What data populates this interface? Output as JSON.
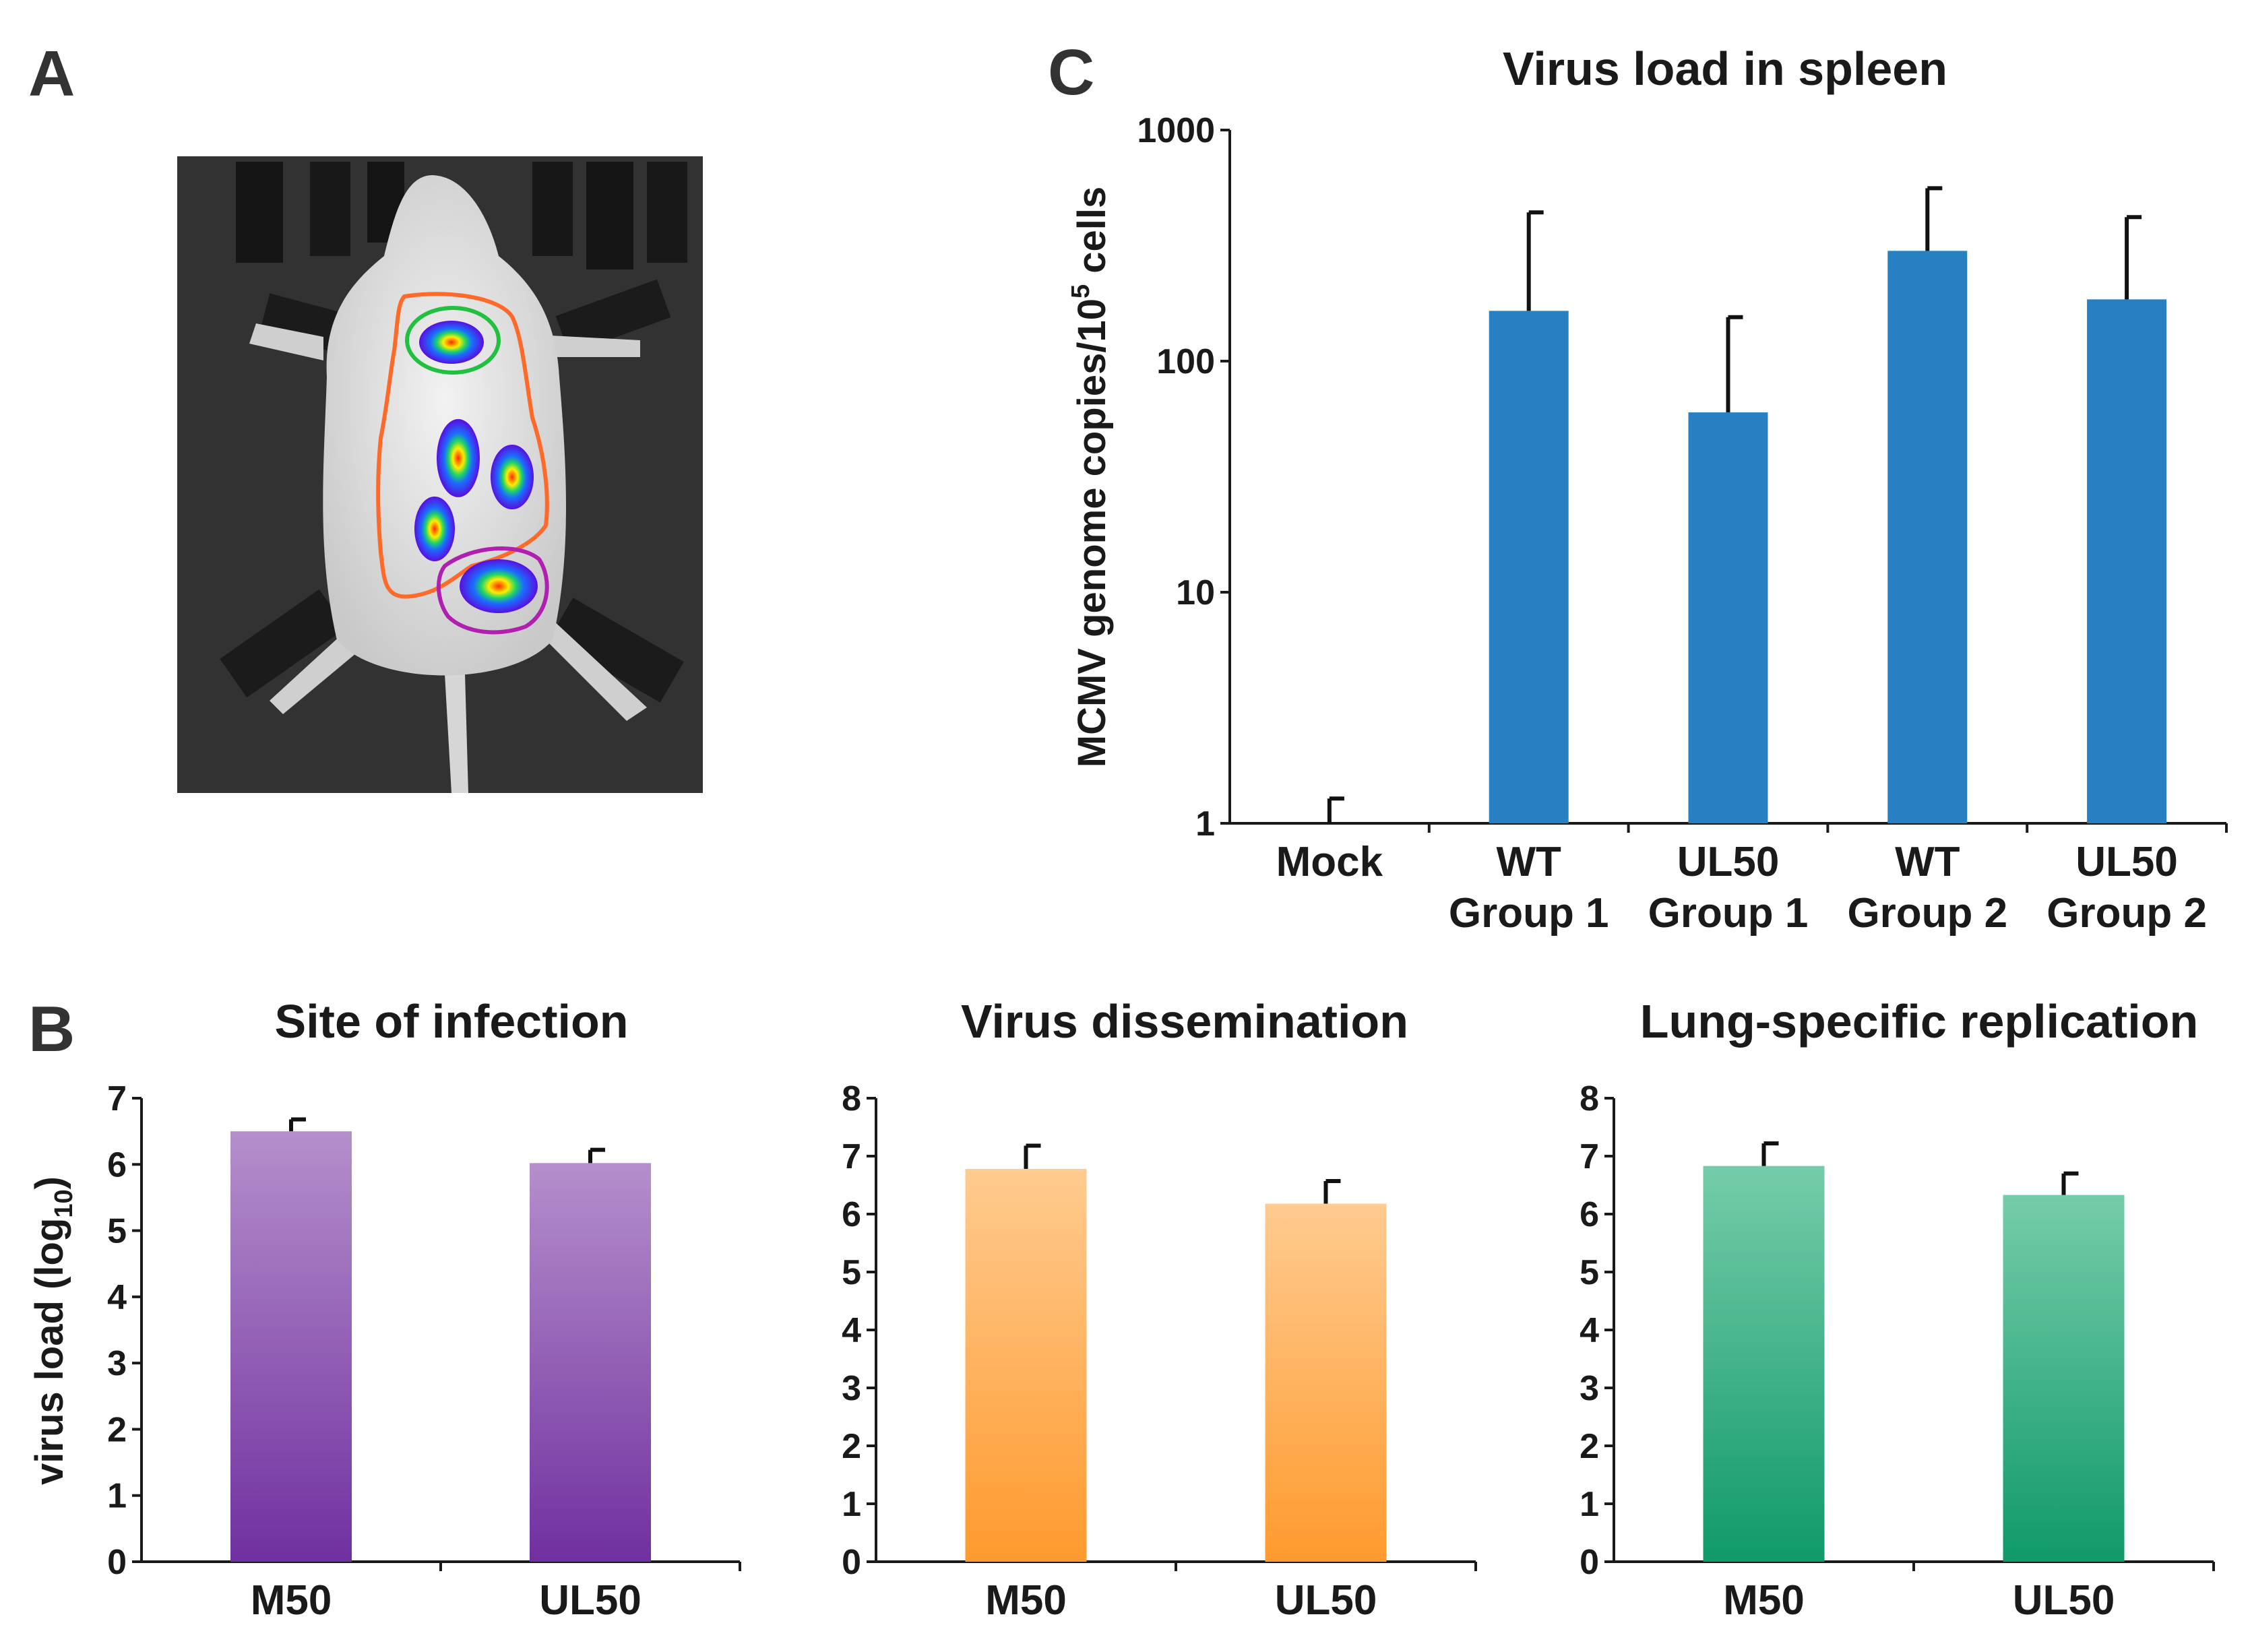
{
  "panel_labels": {
    "a": "A",
    "b": "B",
    "c": "C"
  },
  "photo": {
    "name": "mouse bioluminescence image"
  },
  "chart_data": [
    {
      "id": "c",
      "type": "bar",
      "title": "Virus load in spleen",
      "ylabel_parts": [
        "MCMV genome copies/10",
        "5",
        " cells"
      ],
      "yscale": "log",
      "ylim": [
        1,
        1000
      ],
      "yticks": [
        1,
        10,
        100,
        1000
      ],
      "ytick_labels": [
        "1",
        "10",
        "100",
        "1000"
      ],
      "categories": [
        [
          "Mock"
        ],
        [
          "WT",
          "Group 1"
        ],
        [
          "UL50",
          "Group 1"
        ],
        [
          "WT",
          "Group 2"
        ],
        [
          "UL50",
          "Group 2"
        ]
      ],
      "values": [
        1.0,
        165,
        60,
        300,
        185
      ],
      "errors_upper": [
        1.28,
        440,
        155,
        560,
        420
      ],
      "color": "#2680c2"
    },
    {
      "id": "b1",
      "type": "bar",
      "title": "Site of infection",
      "ylabel_parts": [
        "virus load (log",
        "10",
        ")"
      ],
      "ylim": [
        0,
        7
      ],
      "yticks": [
        0,
        1,
        2,
        3,
        4,
        5,
        6,
        7
      ],
      "ytick_labels": [
        "0",
        "1",
        "2",
        "3",
        "4",
        "5",
        "6",
        "7"
      ],
      "categories": [
        [
          "M50"
        ],
        [
          "UL50"
        ]
      ],
      "values": [
        6.5,
        6.02
      ],
      "errors_upper": [
        6.68,
        6.22
      ],
      "color_top": "#b58fcc",
      "color_bottom": "#7030a0"
    },
    {
      "id": "b2",
      "type": "bar",
      "title": "Virus dissemination",
      "ylim": [
        0,
        8
      ],
      "yticks": [
        0,
        1,
        2,
        3,
        4,
        5,
        6,
        7,
        8
      ],
      "ytick_labels": [
        "0",
        "1",
        "2",
        "3",
        "4",
        "5",
        "6",
        "7",
        "8"
      ],
      "categories": [
        [
          "M50"
        ],
        [
          "UL50"
        ]
      ],
      "values": [
        6.78,
        6.18
      ],
      "errors_upper": [
        7.18,
        6.57
      ],
      "color_top": "#ffcb90",
      "color_bottom": "#ff9a2e"
    },
    {
      "id": "b3",
      "type": "bar",
      "title": "Lung-specific replication",
      "ylim": [
        0,
        8
      ],
      "yticks": [
        0,
        1,
        2,
        3,
        4,
        5,
        6,
        7,
        8
      ],
      "ytick_labels": [
        "0",
        "1",
        "2",
        "3",
        "4",
        "5",
        "6",
        "7",
        "8"
      ],
      "categories": [
        [
          "M50"
        ],
        [
          "UL50"
        ]
      ],
      "values": [
        6.83,
        6.33
      ],
      "errors_upper": [
        7.22,
        6.7
      ],
      "color_top": "#76ccaa",
      "color_bottom": "#109a68"
    }
  ]
}
